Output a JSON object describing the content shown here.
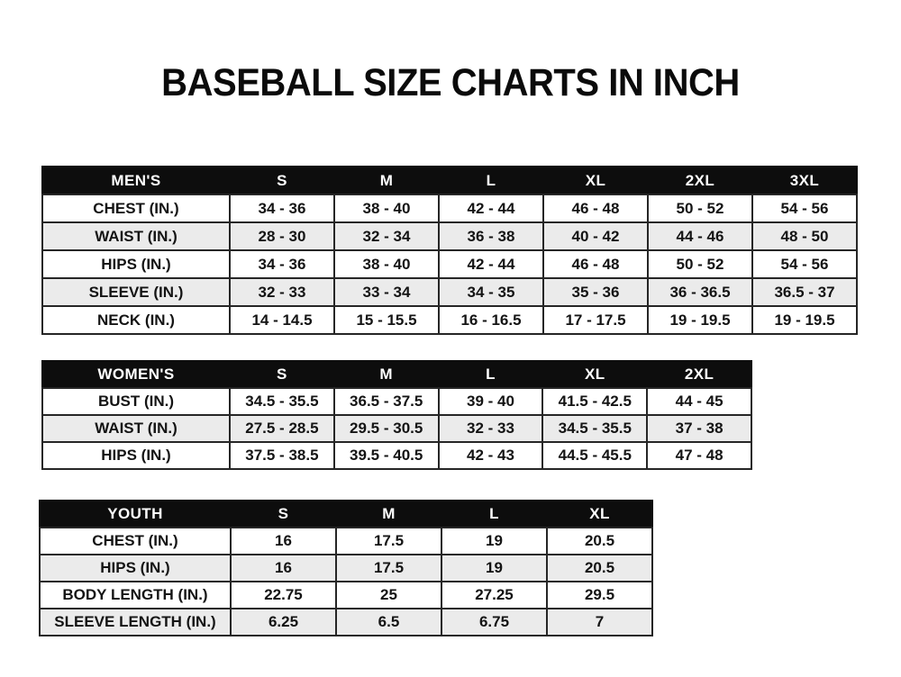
{
  "title": "BASEBALL SIZE CHARTS IN INCH",
  "colors": {
    "page_background": "#ffffff",
    "header_background": "#0d0d0d",
    "header_text": "#ffffff",
    "body_text": "#141414",
    "shaded_row": "#ebebeb",
    "border": "#262626"
  },
  "tables": [
    {
      "name": "mens",
      "header": [
        "MEN'S",
        "S",
        "M",
        "L",
        "XL",
        "2XL",
        "3XL"
      ],
      "rows": [
        [
          "CHEST (IN.)",
          "34 - 36",
          "38 - 40",
          "42 - 44",
          "46 - 48",
          "50 - 52",
          "54 - 56"
        ],
        [
          "WAIST (IN.)",
          "28 - 30",
          "32 - 34",
          "36 - 38",
          "40 - 42",
          "44 - 46",
          "48 - 50"
        ],
        [
          "HIPS (IN.)",
          "34 - 36",
          "38 - 40",
          "42 - 44",
          "46 - 48",
          "50 - 52",
          "54 - 56"
        ],
        [
          "SLEEVE (IN.)",
          "32 - 33",
          "33 - 34",
          "34 - 35",
          "35 - 36",
          "36 - 36.5",
          "36.5 - 37"
        ],
        [
          "NECK (IN.)",
          "14 - 14.5",
          "15 - 15.5",
          "16 - 16.5",
          "17 - 17.5",
          "19 - 19.5",
          "19 - 19.5"
        ]
      ]
    },
    {
      "name": "womens",
      "header": [
        "WOMEN'S",
        "S",
        "M",
        "L",
        "XL",
        "2XL"
      ],
      "rows": [
        [
          "BUST (IN.)",
          "34.5 - 35.5",
          "36.5 - 37.5",
          "39 - 40",
          "41.5 - 42.5",
          "44 - 45"
        ],
        [
          "WAIST (IN.)",
          "27.5 - 28.5",
          "29.5 - 30.5",
          "32 - 33",
          "34.5 - 35.5",
          "37 - 38"
        ],
        [
          "HIPS (IN.)",
          "37.5 - 38.5",
          "39.5 - 40.5",
          "42 - 43",
          "44.5 - 45.5",
          "47 - 48"
        ]
      ]
    },
    {
      "name": "youth",
      "header": [
        "YOUTH",
        "S",
        "M",
        "L",
        "XL"
      ],
      "rows": [
        [
          "CHEST (IN.)",
          "16",
          "17.5",
          "19",
          "20.5"
        ],
        [
          "HIPS (IN.)",
          "16",
          "17.5",
          "19",
          "20.5"
        ],
        [
          "BODY LENGTH (IN.)",
          "22.75",
          "25",
          "27.25",
          "29.5"
        ],
        [
          "SLEEVE LENGTH (IN.)",
          "6.25",
          "6.5",
          "6.75",
          "7"
        ]
      ]
    }
  ]
}
